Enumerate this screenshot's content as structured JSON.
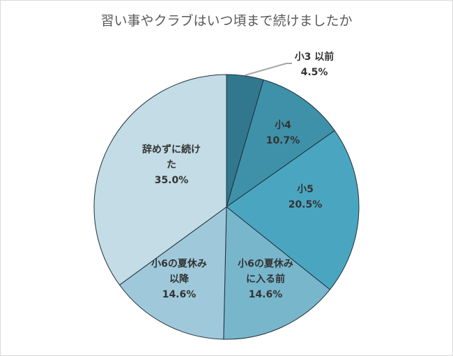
{
  "chart_data": {
    "type": "pie",
    "title": "習い事やクラブはいつ頃まで続けましたか",
    "slices": [
      {
        "label_lines": [
          "小3 以前"
        ],
        "value_text": "4.5%",
        "value": 4.5,
        "color": "#31788f"
      },
      {
        "label_lines": [
          "小4"
        ],
        "value_text": "10.7%",
        "value": 10.7,
        "color": "#3e91a8"
      },
      {
        "label_lines": [
          "小5"
        ],
        "value_text": "20.5%",
        "value": 20.5,
        "color": "#4aa6c0"
      },
      {
        "label_lines": [
          "小6の夏休み",
          "に入る前"
        ],
        "value_text": "14.6%",
        "value": 14.6,
        "color": "#78b6cc"
      },
      {
        "label_lines": [
          "小6の夏休み",
          "以降"
        ],
        "value_text": "14.6%",
        "value": 14.6,
        "color": "#9fc9da"
      },
      {
        "label_lines": [
          "辞めずに続け",
          "た"
        ],
        "value_text": "35.0%",
        "value": 35.0,
        "color": "#c3dce6"
      }
    ],
    "legend": "none"
  }
}
